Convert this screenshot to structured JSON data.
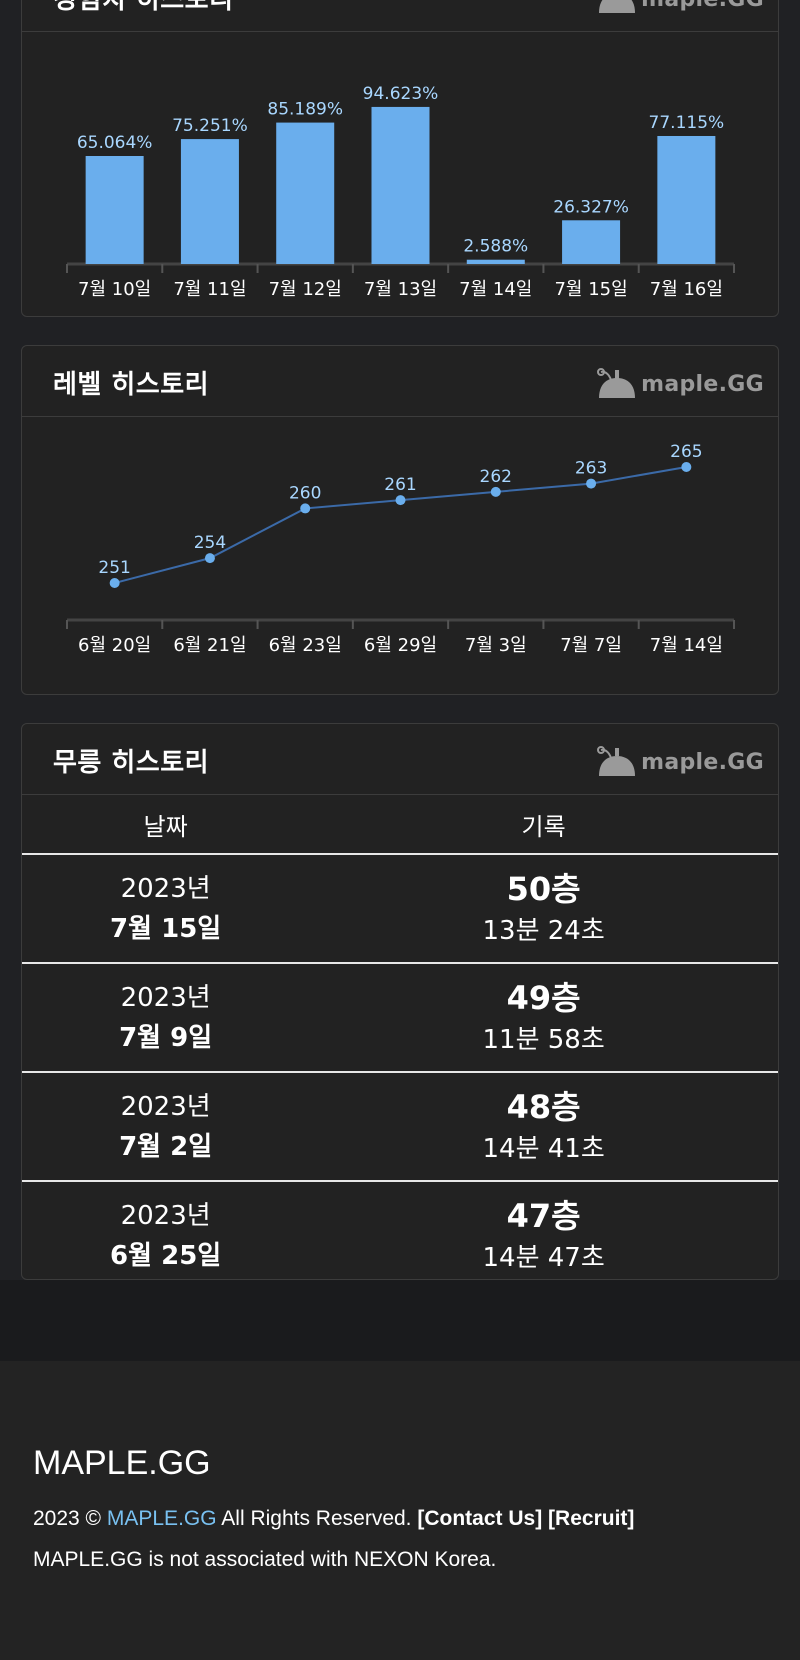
{
  "logo_text": "maple.GG",
  "colors": {
    "bar": "#6aaeed",
    "bar_label": "#a9d7ff",
    "line": "#3b6aa8",
    "point": "#6aaeed",
    "link": "#79c1f1"
  },
  "exp_history": {
    "title": "경험치 히스토리",
    "chart_data": {
      "type": "bar",
      "categories": [
        "7월 10일",
        "7월 11일",
        "7월 12일",
        "7월 13일",
        "7월 14일",
        "7월 15일",
        "7월 16일"
      ],
      "values": [
        65.064,
        75.251,
        85.189,
        94.623,
        2.588,
        26.327,
        77.115
      ],
      "labels": [
        "65.064%",
        "75.251%",
        "85.189%",
        "94.623%",
        "2.588%",
        "26.327%",
        "77.115%"
      ],
      "ylim": [
        0,
        100
      ],
      "grid": false
    }
  },
  "level_history": {
    "title": "레벨 히스토리",
    "chart_data": {
      "type": "line",
      "categories": [
        "6월 20일",
        "6월 21일",
        "6월 23일",
        "6월 29일",
        "7월 3일",
        "7월 7일",
        "7월 14일"
      ],
      "values": [
        251,
        254,
        260,
        261,
        262,
        263,
        265
      ],
      "labels": [
        "251",
        "254",
        "260",
        "261",
        "262",
        "263",
        "265"
      ],
      "grid": false
    }
  },
  "floor_history": {
    "title": "무릉 히스토리",
    "columns": [
      "날짜",
      "기록"
    ],
    "rows": [
      {
        "year": "2023년",
        "day": "7월 15일",
        "floor": "50층",
        "time": "13분 24초"
      },
      {
        "year": "2023년",
        "day": "7월 9일",
        "floor": "49층",
        "time": "11분 58초"
      },
      {
        "year": "2023년",
        "day": "7월 2일",
        "floor": "48층",
        "time": "14분 41초"
      },
      {
        "year": "2023년",
        "day": "6월 25일",
        "floor": "47층",
        "time": "14분 47초"
      }
    ]
  },
  "footer": {
    "brand": "MAPLE.GG",
    "copyright_prefix": "2023 ©",
    "copyright_link": "MAPLE.GG",
    "copyright_suffix": "All Rights Reserved.",
    "contact_link": "[Contact Us]",
    "recruit_link": "[Recruit]",
    "disclaimer": "MAPLE.GG is not associated with NEXON Korea."
  }
}
